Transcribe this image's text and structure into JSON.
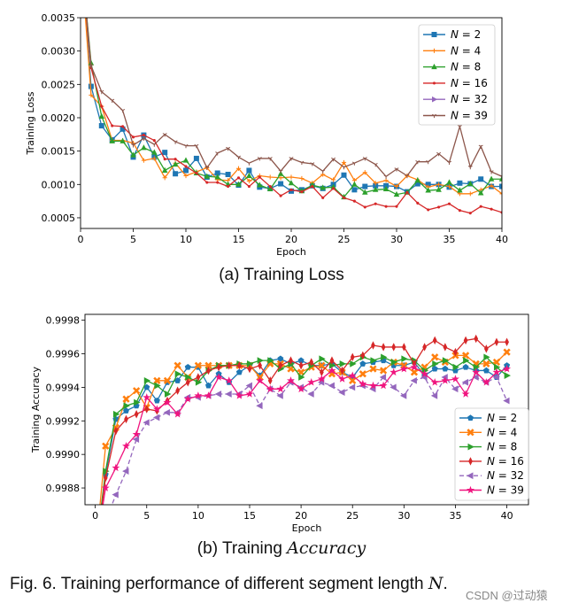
{
  "captions": {
    "a": "(a) Training Loss",
    "b_prefix": "(b) Training ",
    "b_math": "Accuracy",
    "figure_prefix": "Fig. 6. Training performance of different segment length ",
    "figure_math": "N",
    "figure_suffix": "."
  },
  "watermark": "CSDN @过动猿",
  "chart_data": [
    {
      "type": "line",
      "xlabel": "Epoch",
      "ylabel": "Training Loss",
      "xlim": [
        0,
        40
      ],
      "ylim": [
        0.00034,
        0.0035
      ],
      "xticks": [
        0,
        5,
        10,
        15,
        20,
        25,
        30,
        35,
        40
      ],
      "xtick_labels": [
        "0",
        "5",
        "10",
        "15",
        "20",
        "25",
        "30",
        "35",
        "40"
      ],
      "yticks": [
        0.0005,
        0.001,
        0.0015,
        0.002,
        0.0025,
        0.003,
        0.0035
      ],
      "ytick_labels": [
        "0.0005",
        "0.0010",
        "0.0015",
        "0.0020",
        "0.0025",
        "0.0030",
        "0.0035"
      ],
      "grid": false,
      "legend": "top-right",
      "series": [
        {
          "name": "N = 2",
          "color": "#1f77b4",
          "marker": "square",
          "dash": false,
          "values": [
            0.0045,
            0.00247,
            0.00188,
            0.00167,
            0.00183,
            0.00141,
            0.00174,
            0.00141,
            0.00148,
            0.00116,
            0.00121,
            0.00139,
            0.00111,
            0.00117,
            0.00115,
            0.00099,
            0.00121,
            0.00096,
            0.00094,
            0.00101,
            0.0009,
            0.00092,
            0.00098,
            0.00094,
            0.001,
            0.00114,
            0.00092,
            0.00097,
            0.00098,
            0.00098,
            0.00097,
            0.00089,
            0.00101,
            0.001,
            0.001,
            0.00096,
            0.00102,
            0.00101,
            0.00108,
            0.00097,
            0.00097
          ]
        },
        {
          "name": "N = 4",
          "color": "#ff7f0e",
          "marker": "plus",
          "dash": false,
          "values": [
            0.0045,
            0.00234,
            0.00217,
            0.00166,
            0.00166,
            0.00162,
            0.00136,
            0.00139,
            0.0011,
            0.00132,
            0.00113,
            0.00119,
            0.00125,
            0.00107,
            0.00106,
            0.00124,
            0.00105,
            0.00113,
            0.00111,
            0.0011,
            0.00111,
            0.00109,
            0.00102,
            0.00115,
            0.00107,
            0.00133,
            0.00106,
            0.00118,
            0.00102,
            0.00106,
            0.00097,
            0.00113,
            0.00107,
            0.00096,
            0.001,
            0.00097,
            0.00086,
            0.00086,
            0.00092,
            0.00098,
            0.00086
          ]
        },
        {
          "name": "N = 8",
          "color": "#2ca02c",
          "marker": "triangle-up",
          "dash": false,
          "values": [
            0.0045,
            0.00282,
            0.00202,
            0.00165,
            0.00165,
            0.00144,
            0.00155,
            0.00148,
            0.00121,
            0.0013,
            0.00136,
            0.00117,
            0.00112,
            0.00111,
            0.001,
            0.001,
            0.00113,
            0.00099,
            0.00093,
            0.00116,
            0.00102,
            0.0009,
            0.00099,
            0.00095,
            0.00096,
            0.00081,
            0.001,
            0.00088,
            0.00092,
            0.00093,
            0.00085,
            0.00088,
            0.00106,
            0.00091,
            0.00092,
            0.00103,
            0.00091,
            0.00101,
            0.00087,
            0.00108,
            0.00108
          ]
        },
        {
          "name": "N = 16",
          "color": "#d62728",
          "marker": "point",
          "dash": false,
          "values": [
            0.0045,
            0.00275,
            0.00217,
            0.00188,
            0.00187,
            0.00171,
            0.00174,
            0.00166,
            0.00138,
            0.00138,
            0.00127,
            0.00117,
            0.00103,
            0.00103,
            0.00097,
            0.0011,
            0.00097,
            0.00111,
            0.00097,
            0.00083,
            0.00092,
            0.00089,
            0.00097,
            0.0008,
            0.00094,
            0.0008,
            0.00075,
            0.00066,
            0.00071,
            0.00067,
            0.00067,
            0.00088,
            0.00072,
            0.00062,
            0.00066,
            0.00071,
            0.00061,
            0.00057,
            0.00067,
            0.00063,
            0.00058
          ]
        },
        {
          "name": "N = 32",
          "color": "#9467bd",
          "marker": "triangle-right",
          "dash": false,
          "values": []
        },
        {
          "name": "N = 39",
          "color": "#8c564b",
          "marker": "tri-down",
          "dash": false,
          "values": [
            0.0045,
            0.00278,
            0.00239,
            0.00226,
            0.00211,
            0.00159,
            0.00169,
            0.0016,
            0.00175,
            0.00164,
            0.00158,
            0.00158,
            0.00125,
            0.00147,
            0.00154,
            0.00141,
            0.00132,
            0.00139,
            0.00139,
            0.0012,
            0.00139,
            0.00133,
            0.00131,
            0.0012,
            0.00138,
            0.00126,
            0.00132,
            0.00139,
            0.0013,
            0.00112,
            0.00123,
            0.00113,
            0.00134,
            0.00134,
            0.00146,
            0.00133,
            0.00187,
            0.00126,
            0.00157,
            0.00119,
            0.00112
          ]
        }
      ]
    },
    {
      "type": "line",
      "xlabel": "Epoch",
      "ylabel": "Training Accuracy",
      "xlim": [
        -1,
        42.1
      ],
      "ylim": [
        0.9987,
        0.999835
      ],
      "xticks": [
        0,
        5,
        10,
        15,
        20,
        25,
        30,
        35,
        40
      ],
      "xtick_labels": [
        "0",
        "5",
        "10",
        "15",
        "20",
        "25",
        "30",
        "35",
        "40"
      ],
      "yticks": [
        0.9988,
        0.999,
        0.9992,
        0.9994,
        0.9996,
        0.9998
      ],
      "ytick_labels": [
        "0.9988",
        "0.9990",
        "0.9992",
        "0.9994",
        "0.9996",
        "0.9998"
      ],
      "grid": false,
      "legend": "lower-right",
      "series": [
        {
          "name": "N = 2",
          "color": "#1f77b4",
          "marker": "pentagon",
          "dash": false,
          "values": [
            0.9984,
            0.99888,
            0.99921,
            0.99926,
            0.99929,
            0.9994,
            0.99932,
            0.99943,
            0.99944,
            0.99952,
            0.99952,
            0.99941,
            0.99948,
            0.99943,
            0.99949,
            0.99953,
            0.99947,
            0.99956,
            0.99957,
            0.99954,
            0.99956,
            0.99953,
            0.99953,
            0.99954,
            0.99949,
            0.99946,
            0.99954,
            0.99955,
            0.99956,
            0.99953,
            0.99953,
            0.99955,
            0.99947,
            0.99951,
            0.99951,
            0.9995,
            0.99952,
            0.9995,
            0.9995,
            0.99946,
            0.99953
          ]
        },
        {
          "name": "N = 4",
          "color": "#ff7f0e",
          "marker": "x-filled",
          "dash": false,
          "values": [
            0.9984,
            0.99905,
            0.99916,
            0.99933,
            0.99938,
            0.99928,
            0.99944,
            0.99944,
            0.99953,
            0.99946,
            0.99953,
            0.99953,
            0.99953,
            0.99953,
            0.99953,
            0.99953,
            0.99946,
            0.99954,
            0.99954,
            0.99951,
            0.99949,
            0.99952,
            0.99953,
            0.99948,
            0.99949,
            0.99944,
            0.99948,
            0.99951,
            0.9995,
            0.99955,
            0.99953,
            0.99949,
            0.99952,
            0.99958,
            0.99955,
            0.99959,
            0.99959,
            0.99954,
            0.99954,
            0.99955,
            0.99961
          ]
        },
        {
          "name": "N = 8",
          "color": "#2ca02c",
          "marker": "triangle-right",
          "dash": false,
          "values": [
            0.9984,
            0.9989,
            0.99924,
            0.99929,
            0.99931,
            0.99944,
            0.99941,
            0.99936,
            0.99948,
            0.99946,
            0.99943,
            0.9995,
            0.99953,
            0.99953,
            0.99954,
            0.99954,
            0.99956,
            0.99956,
            0.99951,
            0.99954,
            0.99946,
            0.99953,
            0.99957,
            0.99953,
            0.99954,
            0.99954,
            0.99958,
            0.99956,
            0.99958,
            0.99955,
            0.99957,
            0.99956,
            0.9995,
            0.99954,
            0.99956,
            0.99952,
            0.99956,
            0.99952,
            0.99958,
            0.99952,
            0.99947
          ]
        },
        {
          "name": "N = 16",
          "color": "#d62728",
          "marker": "thin-diamond",
          "dash": false,
          "values": [
            0.9984,
            0.99886,
            0.99914,
            0.99921,
            0.99924,
            0.99927,
            0.99926,
            0.99932,
            0.99938,
            0.99943,
            0.99946,
            0.9995,
            0.99952,
            0.99953,
            0.99953,
            0.99951,
            0.99953,
            0.99944,
            0.99953,
            0.99956,
            0.99953,
            0.99955,
            0.99949,
            0.99956,
            0.9995,
            0.99958,
            0.99959,
            0.99965,
            0.99964,
            0.99964,
            0.99964,
            0.99954,
            0.99964,
            0.99968,
            0.99964,
            0.99961,
            0.99968,
            0.99969,
            0.99963,
            0.99967,
            0.99967
          ]
        },
        {
          "name": "N = 32",
          "color": "#9467bd",
          "marker": "triangle-left",
          "dash": true,
          "values": [
            0.9983,
            0.9986,
            0.99876,
            0.9989,
            0.99909,
            0.99919,
            0.99922,
            0.99925,
            0.99925,
            0.99934,
            0.99934,
            0.99935,
            0.99936,
            0.99936,
            0.99936,
            0.99941,
            0.99929,
            0.99939,
            0.99935,
            0.99943,
            0.9994,
            0.99936,
            0.99943,
            0.99941,
            0.99937,
            0.9994,
            0.99941,
            0.99939,
            0.99946,
            0.9994,
            0.99935,
            0.99944,
            0.99946,
            0.99935,
            0.99946,
            0.99939,
            0.99943,
            0.99946,
            0.99943,
            0.99946,
            0.99932
          ]
        },
        {
          "name": "N = 39",
          "color": "#f0157f",
          "marker": "star",
          "dash": false,
          "values": [
            0.9984,
            0.9988,
            0.99892,
            0.99905,
            0.99912,
            0.99934,
            0.99927,
            0.99931,
            0.99924,
            0.99933,
            0.99935,
            0.99935,
            0.99946,
            0.99944,
            0.99935,
            0.99936,
            0.99944,
            0.99939,
            0.99939,
            0.99944,
            0.99939,
            0.99943,
            0.99945,
            0.9995,
            0.99945,
            0.99947,
            0.99942,
            0.99941,
            0.99941,
            0.99949,
            0.99951,
            0.99952,
            0.99948,
            0.99943,
            0.99944,
            0.99945,
            0.99936,
            0.99949,
            0.99943,
            0.99949,
            0.99951
          ]
        }
      ]
    }
  ]
}
